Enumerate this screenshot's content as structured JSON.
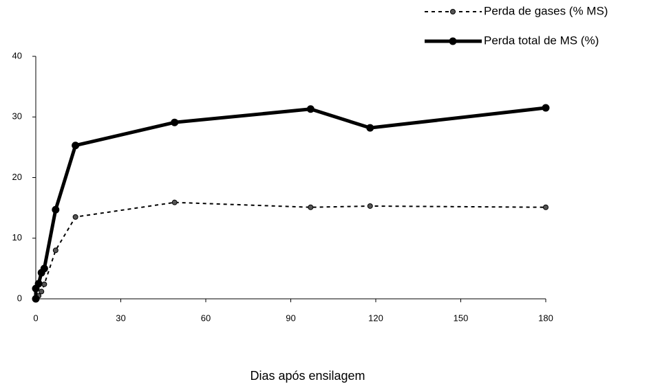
{
  "chart_data": {
    "type": "line",
    "x_label": "Dias após ensilagem",
    "xlim": [
      0,
      180
    ],
    "xticks": [
      0,
      30,
      60,
      90,
      120,
      150,
      180
    ],
    "ylim": [
      0,
      40
    ],
    "yticks": [
      0,
      10,
      20,
      30,
      40
    ],
    "grid": false,
    "legend": "top-right",
    "series": [
      {
        "name": "Perda de gases (% MS)",
        "color": "#000000",
        "dashed": true,
        "x": [
          0,
          1,
          2,
          3,
          7,
          14,
          49,
          97,
          118,
          180
        ],
        "values": [
          0,
          0.5,
          1.2,
          2.4,
          8.0,
          13.5,
          15.9,
          15.1,
          15.3,
          15.1
        ]
      },
      {
        "name": "Perda total de MS (%)",
        "color": "#000000",
        "dashed": false,
        "x": [
          0,
          0,
          1,
          2,
          3,
          7,
          14,
          49,
          97,
          118,
          180
        ],
        "values": [
          0,
          1.7,
          2.5,
          4.3,
          5.0,
          14.7,
          25.3,
          29.1,
          31.3,
          28.2,
          31.5
        ]
      }
    ]
  }
}
